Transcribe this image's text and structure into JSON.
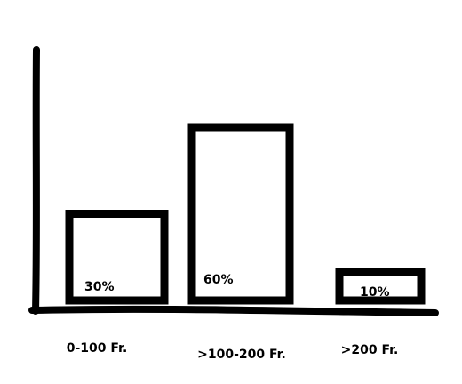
{
  "chart_data": {
    "type": "bar",
    "categories": [
      "0-100 Fr.",
      ">100-200 Fr.",
      ">200 Fr."
    ],
    "values": [
      30,
      60,
      10
    ],
    "data_labels": [
      "30%",
      "60%",
      "10%"
    ],
    "title": "",
    "xlabel": "",
    "ylabel": "",
    "ylim": [
      0,
      100
    ],
    "grid": false,
    "legend": "none",
    "colors": {
      "bar_fill": "#ffffff",
      "bar_outline": "#000000",
      "axis": "#000000",
      "text": "#000000"
    }
  }
}
